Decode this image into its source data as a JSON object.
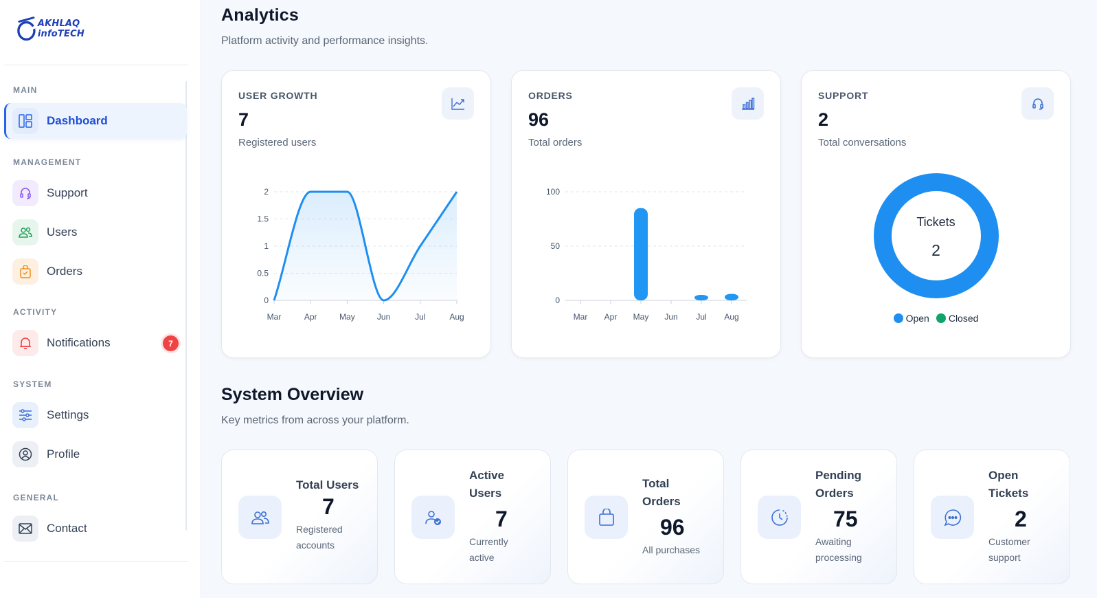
{
  "brand": {
    "logo_text": "AKHLAQ infoTECH"
  },
  "sidebar": {
    "sections": [
      {
        "label": "MAIN"
      },
      {
        "label": "MANAGEMENT"
      },
      {
        "label": "ACTIVITY"
      },
      {
        "label": "SYSTEM"
      },
      {
        "label": "GENERAL"
      }
    ],
    "items": [
      {
        "label": "Dashboard",
        "icon": "dashboard-icon",
        "active": true
      },
      {
        "label": "Support",
        "icon": "headset-icon"
      },
      {
        "label": "Users",
        "icon": "users-icon"
      },
      {
        "label": "Orders",
        "icon": "shopping-bag-icon"
      },
      {
        "label": "Notifications",
        "icon": "bell-icon",
        "badge": "7"
      },
      {
        "label": "Settings",
        "icon": "sliders-icon"
      },
      {
        "label": "Profile",
        "icon": "user-circle-icon"
      },
      {
        "label": "Contact",
        "icon": "mail-icon"
      }
    ]
  },
  "analytics": {
    "title": "Analytics",
    "subtitle": "Platform activity and performance insights.",
    "cards": [
      {
        "label": "USER GROWTH",
        "value": "7",
        "caption": "Registered users",
        "icon": "trend-line-icon"
      },
      {
        "label": "ORDERS",
        "value": "96",
        "caption": "Total orders",
        "icon": "bar-chart-icon"
      },
      {
        "label": "SUPPORT",
        "value": "2",
        "caption": "Total conversations",
        "icon": "headset-icon"
      }
    ]
  },
  "chart_data": [
    {
      "type": "area",
      "categories": [
        "Mar",
        "Apr",
        "May",
        "Jun",
        "Jul",
        "Aug"
      ],
      "series": [
        {
          "values": [
            0,
            2,
            2,
            0,
            1,
            2
          ]
        }
      ],
      "ylim": [
        0,
        2
      ],
      "yticks": [
        "0",
        "0.5",
        "1",
        "1.5",
        "2"
      ],
      "color": "#1e8ff0",
      "grid": true
    },
    {
      "type": "bar",
      "categories": [
        "Mar",
        "Apr",
        "May",
        "Jun",
        "Jul",
        "Aug"
      ],
      "series": [
        {
          "values": [
            0,
            0,
            85,
            0,
            2,
            6
          ]
        }
      ],
      "ylim": [
        0,
        100
      ],
      "yticks": [
        "0",
        "50",
        "100"
      ],
      "color": "#2196f3",
      "grid": true
    },
    {
      "type": "pie",
      "center_label": "Tickets",
      "center_value": "2",
      "series": [
        {
          "name": "Open",
          "value": 2,
          "color": "#1e8ff0"
        },
        {
          "name": "Closed",
          "value": 0,
          "color": "#10a36b"
        }
      ],
      "legend": "bottom"
    }
  ],
  "overview": {
    "title": "System Overview",
    "subtitle": "Key metrics from across your platform.",
    "stats": [
      {
        "title_lines": [
          "Total Users"
        ],
        "value": "7",
        "caption_lines": [
          "Registered",
          "accounts"
        ],
        "icon": "users-icon"
      },
      {
        "title_lines": [
          "Active",
          "Users"
        ],
        "value": "7",
        "caption_lines": [
          "Currently",
          "active"
        ],
        "icon": "user-check-icon"
      },
      {
        "title_lines": [
          "Total",
          "Orders"
        ],
        "value": "96",
        "caption_lines": [
          "All purchases"
        ],
        "icon": "shopping-bag-icon"
      },
      {
        "title_lines": [
          "Pending",
          "Orders"
        ],
        "value": "75",
        "caption_lines": [
          "Awaiting",
          "processing"
        ],
        "icon": "clock-icon"
      },
      {
        "title_lines": [
          "Open",
          "Tickets"
        ],
        "value": "2",
        "caption_lines": [
          "Customer",
          "support"
        ],
        "icon": "chat-bubble-icon"
      }
    ]
  }
}
